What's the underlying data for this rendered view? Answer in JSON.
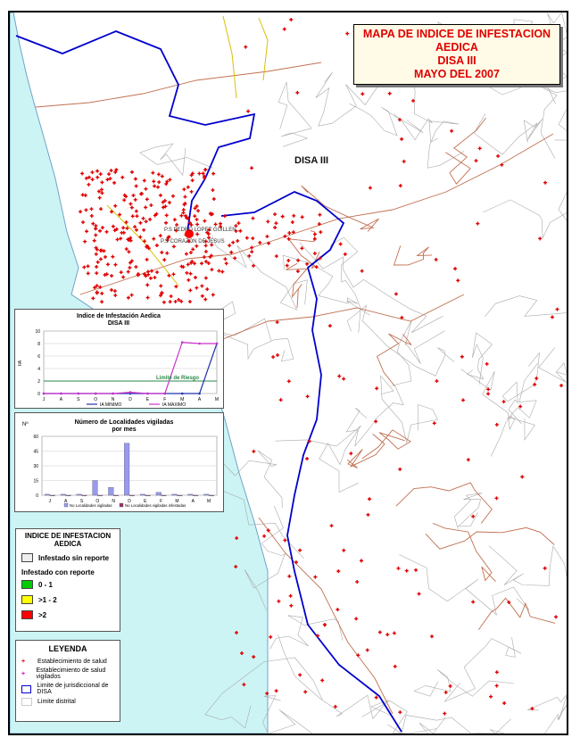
{
  "title": {
    "line1": "MAPA DE INDICE DE INFESTACION",
    "line2": "AEDICA",
    "line3": "DISA III",
    "line4": "MAYO DEL 2007"
  },
  "map_labels": {
    "disa": "DISA III",
    "place1": "P.S PEDRO LOPEZ GUILLEN",
    "place2": "P.S CORAZON DE JESUS"
  },
  "colors": {
    "sea": "#ccf4f4",
    "road": "#c07050",
    "boundary": "#0000cc",
    "district": "#aaaaaa",
    "marker": "#e00000",
    "vigilado": "#cc00cc"
  },
  "chart_data": [
    {
      "type": "line",
      "title": "Indice de Infestación Aedica",
      "subtitle": "DISA III",
      "ylabel": "IIA",
      "categories": [
        "J",
        "A",
        "S",
        "O",
        "N",
        "D",
        "E",
        "F",
        "M",
        "A",
        "M"
      ],
      "ylim": [
        0,
        10
      ],
      "yticks": [
        "0",
        "2",
        "4",
        "6",
        "8",
        "10"
      ],
      "series": [
        {
          "name": "IA MINIMO",
          "values": [
            0,
            0,
            0,
            0,
            0,
            0,
            0,
            0,
            0,
            0,
            8
          ]
        },
        {
          "name": "IA MAXIMO",
          "values": [
            0,
            0,
            0,
            0,
            0,
            0.2,
            0,
            0,
            8.2,
            8,
            8
          ]
        }
      ],
      "threshold": {
        "label": "Limite de Riesgo",
        "value": 2
      },
      "legend": "bottom"
    },
    {
      "type": "bar",
      "title": "Número de Localidades vigiladas",
      "subtitle": "por mes",
      "ylabel": "Nº",
      "categories": [
        "J",
        "A",
        "S",
        "O",
        "N",
        "D",
        "E",
        "F",
        "M",
        "A",
        "M"
      ],
      "ylim": [
        0,
        60
      ],
      "yticks": [
        "0",
        "15",
        "30",
        "45",
        "60"
      ],
      "series": [
        {
          "name": "No Localidades vigiladas",
          "values": [
            1,
            1,
            1,
            15,
            8,
            53,
            1,
            3,
            1,
            1,
            1
          ]
        },
        {
          "name": "No Localidades vigiladas infestadas",
          "values": [
            0,
            0,
            0,
            0,
            0,
            0,
            0,
            0,
            0,
            0,
            0
          ]
        }
      ],
      "legend": "bottom"
    }
  ],
  "legend_infestacion": {
    "title1": "INDICE DE INFESTACION",
    "title2": "AEDICA",
    "no_report": "Infestado sin reporte",
    "with_report": "Infestado con reporte",
    "classes": [
      {
        "label": "0 - 1",
        "color": "#00cc00"
      },
      {
        "label": ">1 - 2",
        "color": "#ffff00"
      },
      {
        "label": ">2",
        "color": "#ff0000"
      }
    ]
  },
  "leyenda": {
    "title": "LEYENDA",
    "items": [
      "Establecimiento de salud",
      "Establecimiento de salud vigilados",
      "Limite de jurisdiccional de DISA",
      "Limite distrital"
    ]
  }
}
